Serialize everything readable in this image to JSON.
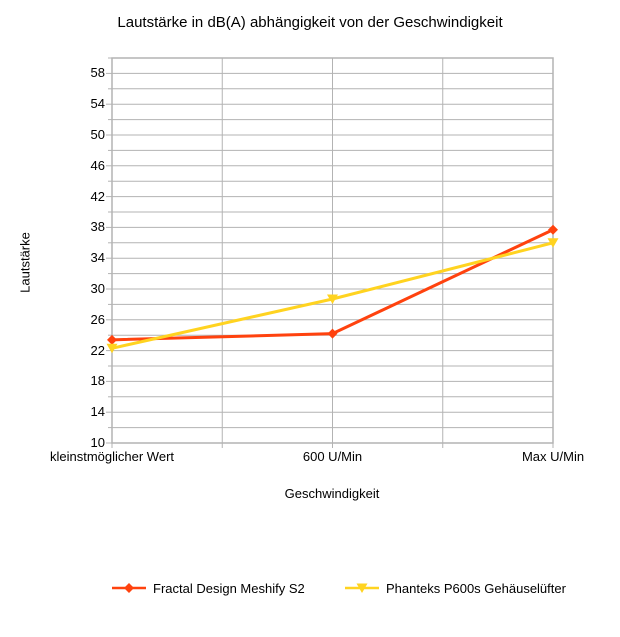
{
  "chart_data": {
    "type": "line",
    "title": "Lautstärke in dB(A) abhängigkeit von der Geschwindigkeit",
    "xlabel": "Geschwindigkeit",
    "ylabel": "Lautstärke",
    "categories": [
      "kleinstmöglicher Wert",
      "600 U/Min",
      "Max U/Min"
    ],
    "series": [
      {
        "name": "Fractal Design Meshify S2",
        "values": [
          23.4,
          24.2,
          37.7
        ],
        "color": "#ff420e",
        "marker": "diamond"
      },
      {
        "name": "Phanteks P600s Gehäuselüfter",
        "values": [
          22.3,
          28.7,
          36.0
        ],
        "color": "#ffd320",
        "marker": "triangle-down"
      }
    ],
    "ylim": [
      10,
      60
    ],
    "y_major_ticks": [
      10,
      14,
      18,
      22,
      26,
      30,
      34,
      38,
      42,
      46,
      50,
      54,
      58
    ],
    "y_minor_step": 2,
    "grid": true,
    "grid_color": "#b3b3b3",
    "text_color": "#000000",
    "background": "#ffffff",
    "legend_position": "bottom"
  }
}
